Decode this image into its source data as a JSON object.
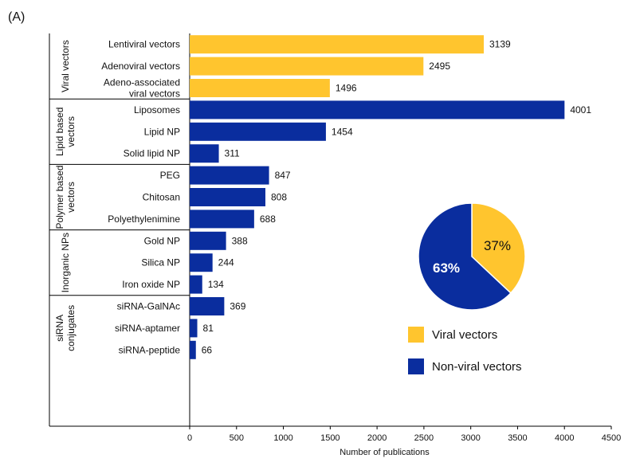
{
  "panel_label": "(A)",
  "colors": {
    "viral": "#FFC52E",
    "nonviral": "#0A2D9E"
  },
  "chart_data": [
    {
      "type": "bar",
      "orientation": "horizontal",
      "xlabel": "Number of publications",
      "xlim": [
        0,
        4500
      ],
      "xticks": [
        0,
        500,
        1000,
        1500,
        2000,
        2500,
        3000,
        3500,
        4000,
        4500
      ],
      "groups": [
        {
          "name": "Viral vectors",
          "name_lines": [
            "Viral vectors"
          ],
          "class": "viral",
          "items": [
            {
              "label_lines": [
                "Lentiviral vectors"
              ],
              "value": 3139
            },
            {
              "label_lines": [
                "Adenoviral vectors"
              ],
              "value": 2495
            },
            {
              "label_lines": [
                "Adeno-associated",
                "viral vectors"
              ],
              "value": 1496
            }
          ]
        },
        {
          "name": "Lipid based vectors",
          "name_lines": [
            "Lipid based",
            "vectors"
          ],
          "class": "nonviral",
          "items": [
            {
              "label_lines": [
                "Liposomes"
              ],
              "value": 4001
            },
            {
              "label_lines": [
                "Lipid NP"
              ],
              "value": 1454
            },
            {
              "label_lines": [
                "Solid lipid NP"
              ],
              "value": 311
            }
          ]
        },
        {
          "name": "Polymer based vectors",
          "name_lines": [
            "Polymer based",
            "vectors"
          ],
          "class": "nonviral",
          "items": [
            {
              "label_lines": [
                "PEG"
              ],
              "value": 847
            },
            {
              "label_lines": [
                "Chitosan"
              ],
              "value": 808
            },
            {
              "label_lines": [
                "Polyethylenimine"
              ],
              "value": 688
            }
          ]
        },
        {
          "name": "Inorganic NPs",
          "name_lines": [
            "Inorganic NPs"
          ],
          "class": "nonviral",
          "items": [
            {
              "label_lines": [
                "Gold NP"
              ],
              "value": 388
            },
            {
              "label_lines": [
                "Silica NP"
              ],
              "value": 244
            },
            {
              "label_lines": [
                "Iron oxide NP"
              ],
              "value": 134
            }
          ]
        },
        {
          "name": "siRNA conjugates",
          "name_lines": [
            "siRNA",
            "conjugates"
          ],
          "class": "nonviral",
          "items": [
            {
              "label_lines": [
                "siRNA-GalNAc"
              ],
              "value": 369
            },
            {
              "label_lines": [
                "siRNA-aptamer"
              ],
              "value": 81
            },
            {
              "label_lines": [
                "siRNA-peptide"
              ],
              "value": 66
            }
          ]
        }
      ]
    },
    {
      "type": "pie",
      "slices": [
        {
          "name": "Viral vectors",
          "value": 37,
          "label": "37%",
          "class": "viral"
        },
        {
          "name": "Non-viral vectors",
          "value": 63,
          "label": "63%",
          "class": "nonviral"
        }
      ],
      "legend": [
        {
          "label": "Viral vectors",
          "class": "viral"
        },
        {
          "label": "Non-viral vectors",
          "class": "nonviral"
        }
      ]
    }
  ]
}
